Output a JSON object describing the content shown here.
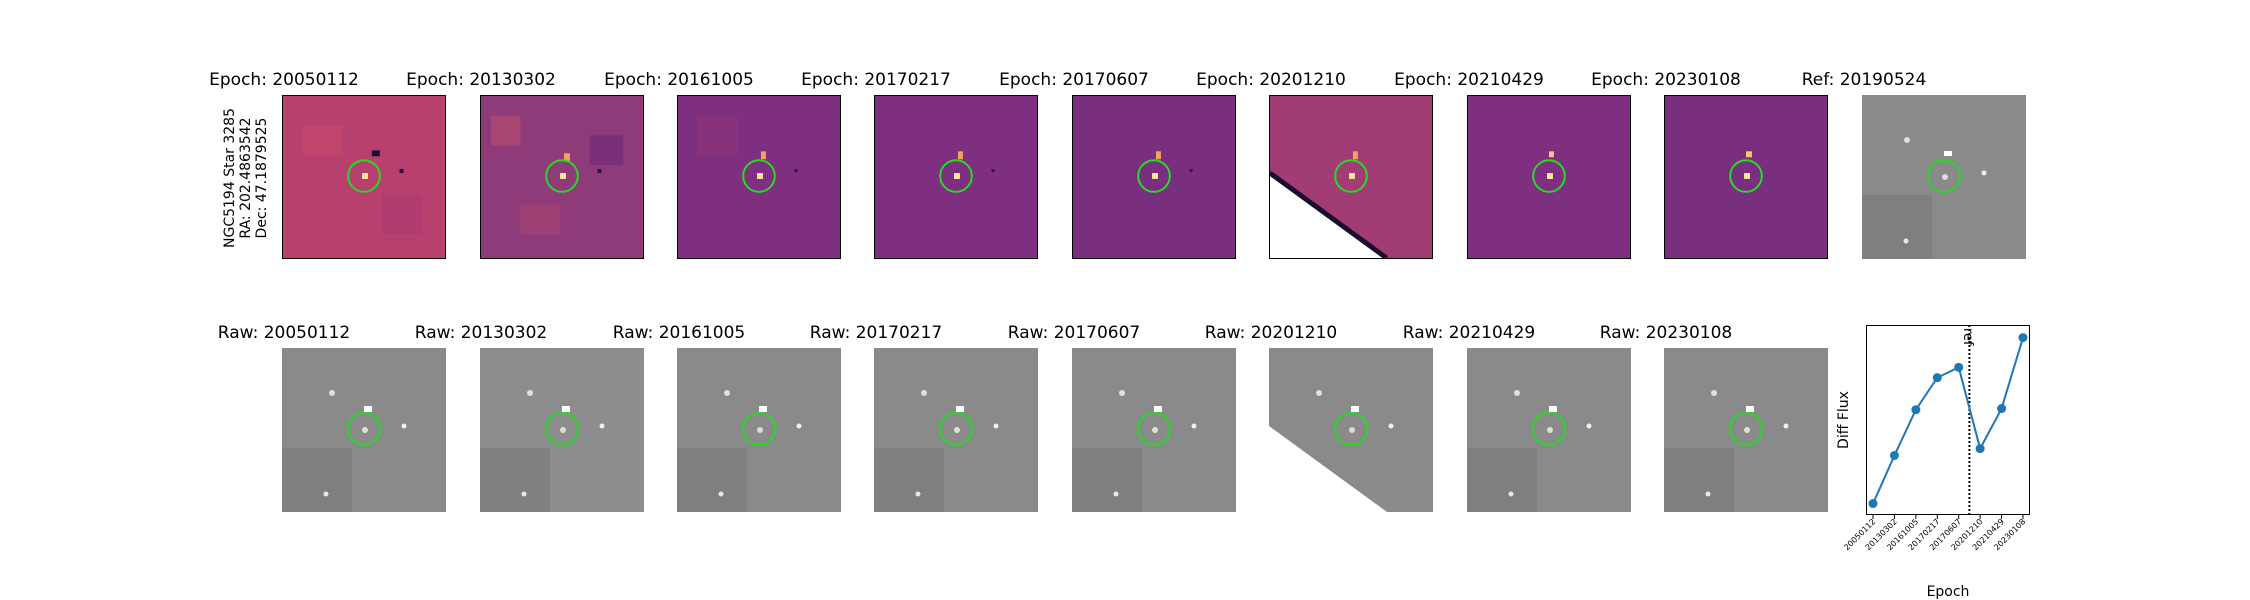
{
  "star_info": {
    "name": "NGC5194 Star 3285",
    "ra": "RA: 202.4863542",
    "dec": "Dec: 47.1879525"
  },
  "top_row": {
    "titles": [
      "Epoch: 20050112",
      "Epoch: 20130302",
      "Epoch: 20161005",
      "Epoch: 20170217",
      "Epoch: 20170607",
      "Epoch: 20201210",
      "Epoch: 20210429",
      "Epoch: 20230108"
    ],
    "ref_title": "Ref: 20190524"
  },
  "bottom_row": {
    "titles": [
      "Raw: 20050112",
      "Raw: 20130302",
      "Raw: 20161005",
      "Raw: 20170217",
      "Raw: 20170607",
      "Raw: 20201210",
      "Raw: 20210429",
      "Raw: 20230108"
    ]
  },
  "colors": {
    "aperture_circle": "#22dd22",
    "diff_background": "#7e2f7f",
    "line": "#1f77b4"
  },
  "chart_data": {
    "type": "line",
    "xlabel": "Epoch",
    "ylabel": "Diff Flux",
    "categories": [
      "20050112",
      "20130302",
      "20161005",
      "20170217",
      "20170607",
      "20201210",
      "20210429",
      "20230108"
    ],
    "values": [
      0.05,
      0.26,
      0.46,
      0.6,
      0.645,
      0.29,
      0.465,
      0.775
    ],
    "ylim": [
      0.0,
      0.83
    ],
    "reference_line": {
      "label": "ref",
      "position": 4.5,
      "style": "dotted"
    },
    "grid": false
  }
}
